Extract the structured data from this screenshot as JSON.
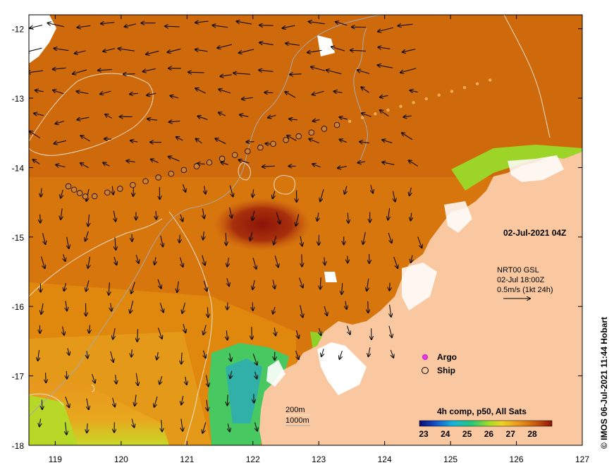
{
  "map": {
    "date_label": "02-Jul-2021 04Z",
    "current_block": {
      "line1": "NRT00 GSL",
      "line2": "02-Jul 18:00Z",
      "line3": "0.5m/s (1kt 24h)"
    },
    "legend": {
      "argo_label": "Argo",
      "ship_label": "Ship",
      "argo_color": "#e838e8"
    },
    "contour_legend": {
      "line1": "200m",
      "line2": "1000m"
    },
    "colorbar": {
      "title": "4h comp, p50, All Sats",
      "ticks": [
        "23",
        "24",
        "25",
        "26",
        "27",
        "28"
      ],
      "colors": [
        "#0a0a6e",
        "#1450c8",
        "#14b4dc",
        "#28c878",
        "#a0dc28",
        "#f0d228",
        "#e8961e",
        "#c85a10",
        "#8c1408"
      ]
    },
    "credit": "© IMOS 06-Jul-2021 11:44 Hobart",
    "axes": {
      "lon_ticks": [
        "119",
        "120",
        "121",
        "122",
        "123",
        "124",
        "125",
        "126",
        "127"
      ],
      "lat_ticks": [
        "-12",
        "-13",
        "-14",
        "-15",
        "-16",
        "-17",
        "-18"
      ],
      "lon_range": [
        118.6,
        127
      ],
      "lat_range": [
        -18,
        -11.8
      ]
    },
    "land_color": "#f9c8a0",
    "ocean_color": "#d0700c"
  }
}
